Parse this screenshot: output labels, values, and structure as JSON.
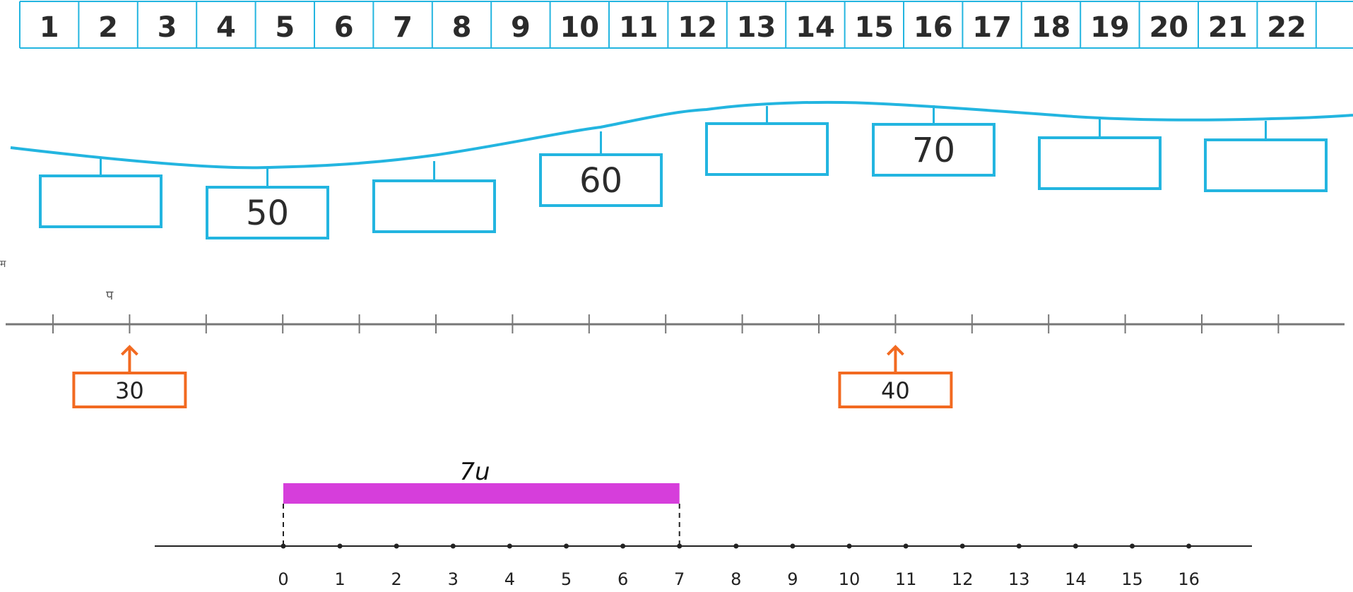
{
  "number_strip": {
    "numbers": [
      "1",
      "2",
      "3",
      "4",
      "5",
      "6",
      "7",
      "8",
      "9",
      "10",
      "11",
      "12",
      "13",
      "14",
      "15",
      "16",
      "17",
      "18",
      "19",
      "20",
      "21",
      "22",
      ""
    ]
  },
  "wave_boxes": {
    "labels": [
      "",
      "50",
      "",
      "60",
      "",
      "70",
      "",
      ""
    ]
  },
  "tick_line": {
    "top_mark": "प",
    "left_mark": "म",
    "callouts": [
      {
        "label": "30",
        "tick": 2
      },
      {
        "label": "40",
        "tick": 12
      }
    ]
  },
  "segment": {
    "label": "7u",
    "start": 0,
    "end": 7
  },
  "dot_line": {
    "labels": [
      "0",
      "1",
      "2",
      "3",
      "4",
      "5",
      "6",
      "7",
      "8",
      "9",
      "10",
      "11",
      "12",
      "13",
      "14",
      "15",
      "16"
    ]
  },
  "colors": {
    "cyan": "#23b5e0",
    "orange": "#f26a21",
    "magenta": "#d63edb",
    "gray": "#777777",
    "dark": "#222222"
  }
}
